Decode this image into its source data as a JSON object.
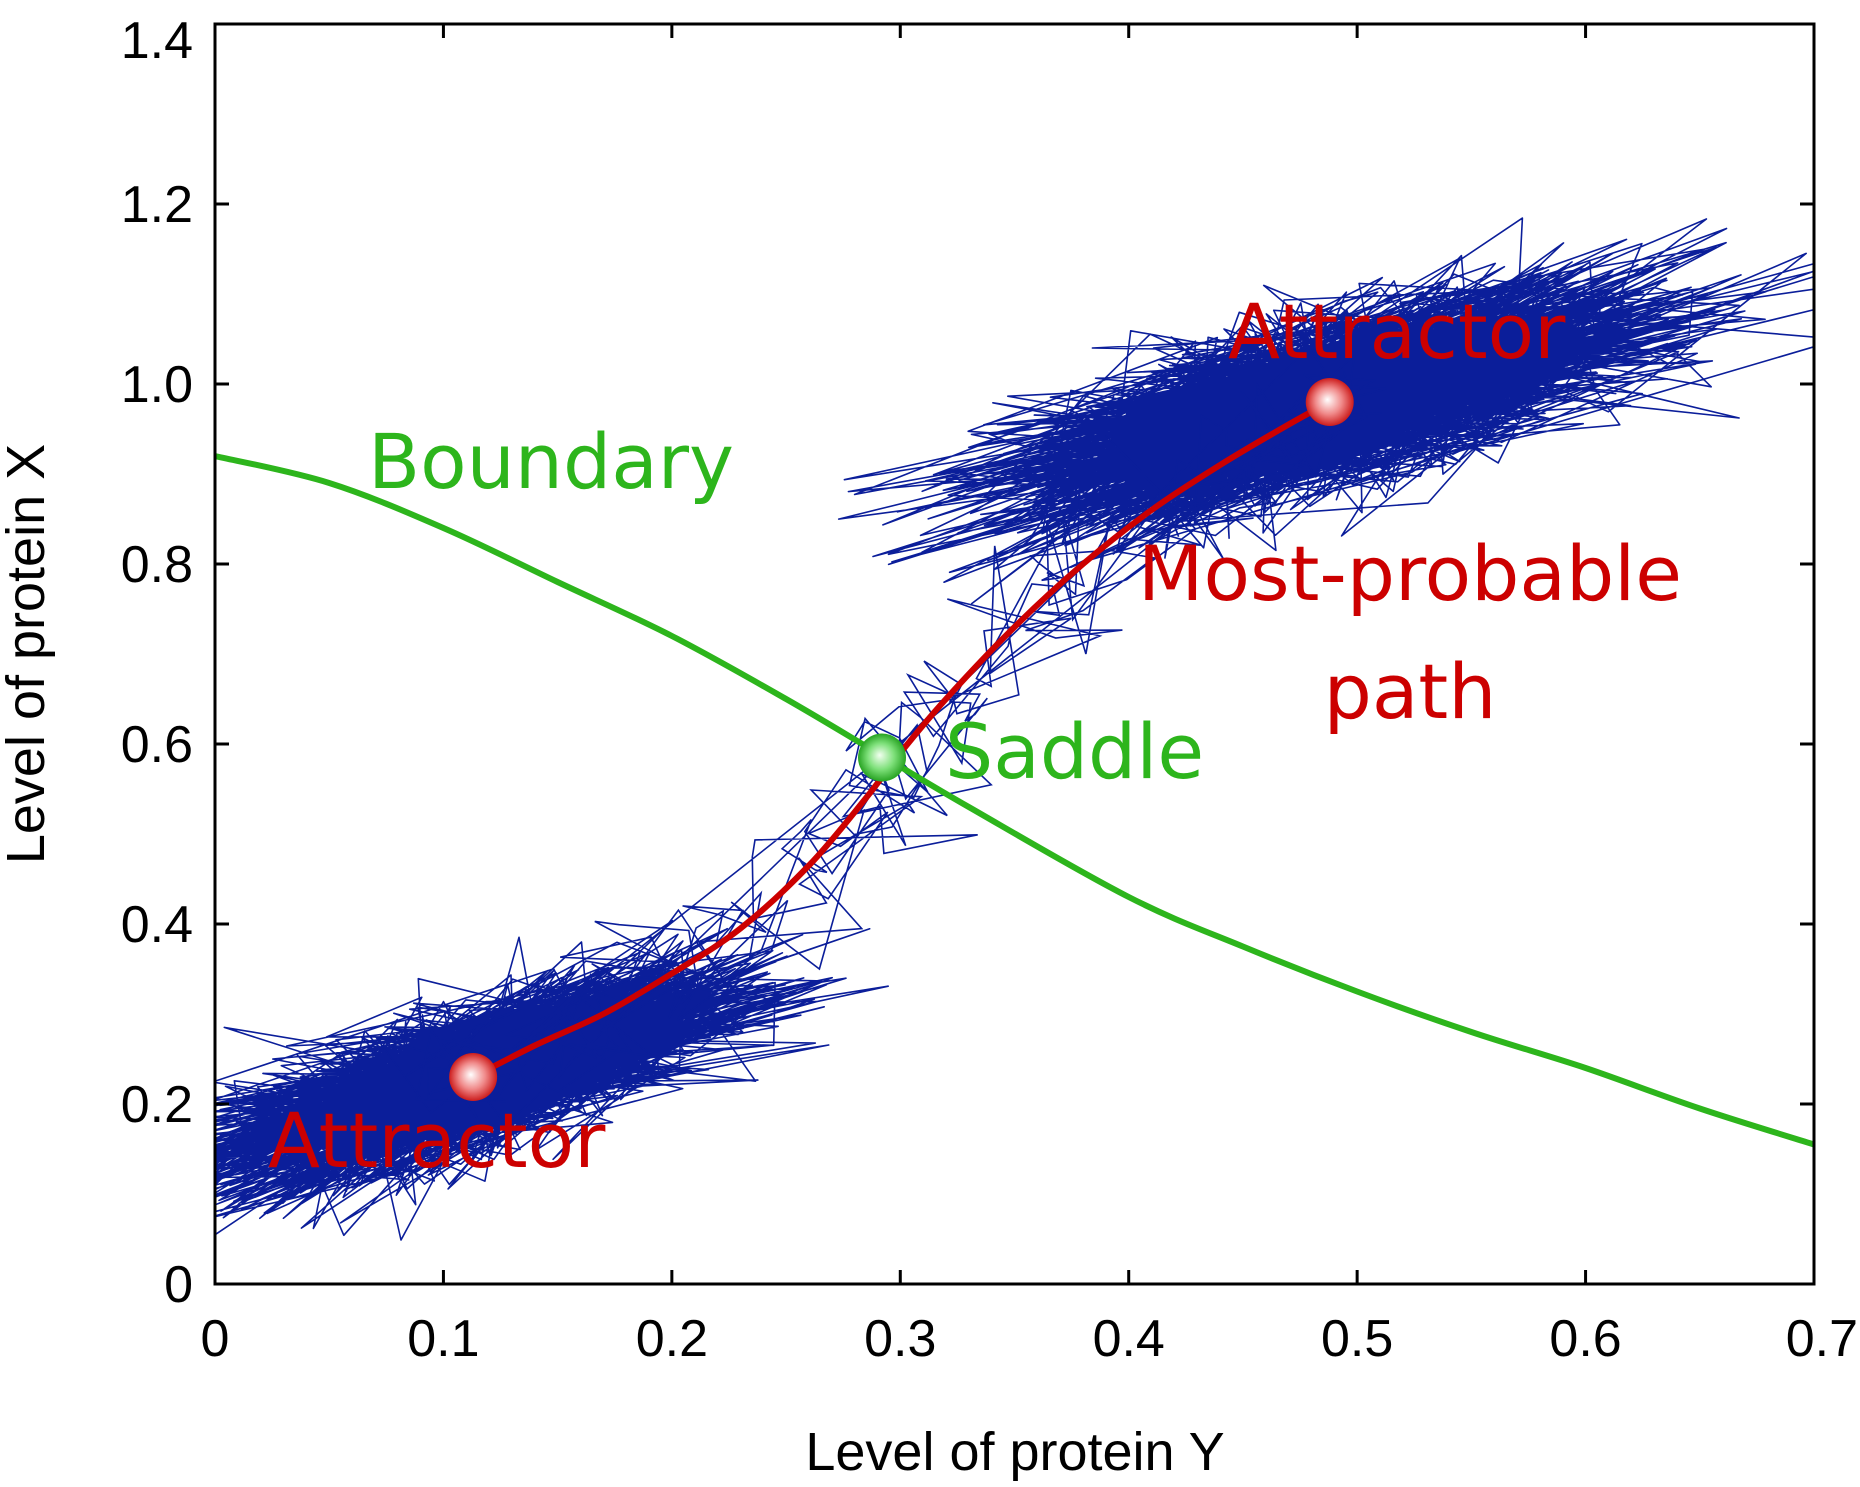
{
  "chart_data": {
    "type": "scatter",
    "xlabel": "Level of protein Y",
    "ylabel": "Level of protein X",
    "xlim": [
      0,
      0.7
    ],
    "ylim": [
      0,
      1.4
    ],
    "x_ticks": [
      "0",
      "0.1",
      "0.2",
      "0.3",
      "0.4",
      "0.5",
      "0.6",
      "0.7"
    ],
    "y_ticks": [
      "0",
      "0.2",
      "0.4",
      "0.6",
      "0.8",
      "1.0",
      "1.2",
      "1.4"
    ],
    "grid": false,
    "colors": {
      "trajectory": "#0b1e9a",
      "boundary": "#2db51c",
      "path": "#cc0000",
      "attractor_point": "#e33b3b",
      "saddle_point": "#3fc43a",
      "axis": "#000000"
    },
    "boundary_curve": {
      "x": [
        0.0,
        0.05,
        0.1,
        0.15,
        0.2,
        0.25,
        0.29,
        0.33,
        0.4,
        0.45,
        0.5,
        0.55,
        0.6,
        0.65,
        0.7
      ],
      "y": [
        0.92,
        0.89,
        0.84,
        0.78,
        0.72,
        0.65,
        0.59,
        0.53,
        0.43,
        0.375,
        0.325,
        0.28,
        0.24,
        0.195,
        0.155
      ]
    },
    "most_probable_path": {
      "x": [
        0.113,
        0.14,
        0.17,
        0.2,
        0.23,
        0.26,
        0.285,
        0.3,
        0.32,
        0.35,
        0.38,
        0.41,
        0.44,
        0.47,
        0.488
      ],
      "y": [
        0.23,
        0.265,
        0.3,
        0.345,
        0.395,
        0.465,
        0.54,
        0.59,
        0.65,
        0.73,
        0.8,
        0.86,
        0.91,
        0.955,
        0.98
      ]
    },
    "trajectory_clusters": [
      {
        "center": [
          0.113,
          0.23
        ],
        "spread": [
          0.055,
          0.065
        ],
        "tilt": 0.35
      },
      {
        "center": [
          0.488,
          0.98
        ],
        "spread": [
          0.07,
          0.075
        ],
        "tilt": 0.3
      }
    ],
    "points": [
      {
        "kind": "attractor",
        "x": 0.113,
        "y": 0.23
      },
      {
        "kind": "attractor",
        "x": 0.488,
        "y": 0.98
      },
      {
        "kind": "saddle",
        "x": 0.292,
        "y": 0.585
      }
    ],
    "annotations": {
      "boundary": "Boundary",
      "saddle": "Saddle",
      "attractor_top": "Attractor",
      "attractor_bottom": "Attractor",
      "path_line1": "Most-probable",
      "path_line2": "path"
    }
  }
}
